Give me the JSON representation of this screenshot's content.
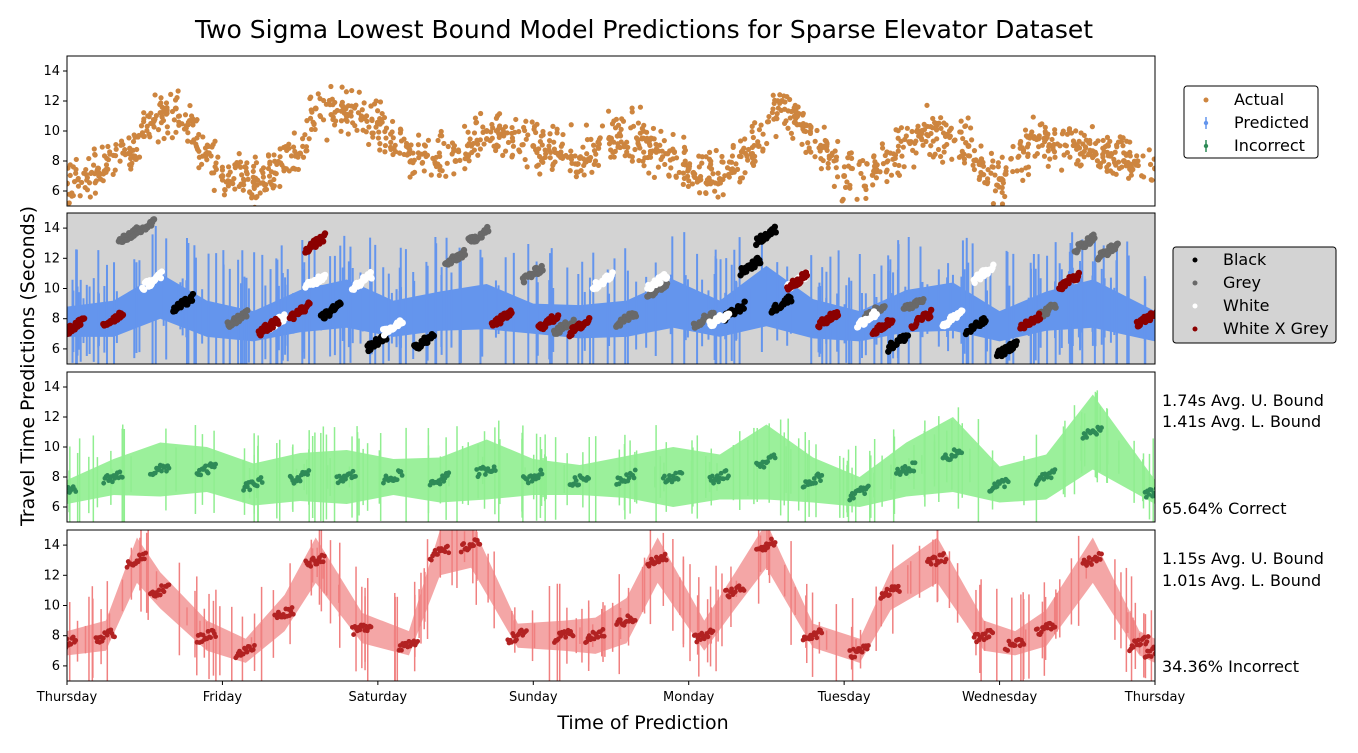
{
  "chart_data": {
    "type": "scatter",
    "title": "Two Sigma Lowest Bound Model Predictions for Sparse Elevator Dataset",
    "xlabel": "Time of Prediction",
    "ylabel": "Travel Time Predictions (Seconds)",
    "x_ticks": [
      "Thursday",
      "Friday",
      "Saturday",
      "Sunday",
      "Monday",
      "Tuesday",
      "Wednesday",
      "Thursday"
    ],
    "xlim": [
      0,
      7
    ],
    "ylim": [
      5,
      15
    ],
    "y_ticks": [
      6,
      8,
      10,
      12,
      14
    ],
    "colors": {
      "actual": "#cd853f",
      "predicted": "#6495ed",
      "incorrect_swatch": "#2e8b57",
      "black": "#000000",
      "grey": "#696969",
      "white": "#ffffff",
      "white_x_grey": "#8b0000",
      "correct_band": "#90ee90",
      "correct_point": "#2e8b57",
      "incorrect_band": "#f08080",
      "incorrect_point": "#b22222",
      "grey_background": "#d3d3d3"
    },
    "panels": [
      {
        "id": "actual",
        "legend": [
          "Actual",
          "Predicted",
          "Incorrect"
        ],
        "series": [
          {
            "name": "Actual",
            "x": [
              0.0,
              0.2,
              0.4,
              0.55,
              0.7,
              1.0,
              1.2,
              1.5,
              1.6,
              1.8,
              2.0,
              2.2,
              2.5,
              2.7,
              3.0,
              3.3,
              3.5,
              3.7,
              4.0,
              4.2,
              4.45,
              4.6,
              5.0,
              5.2,
              5.5,
              5.8,
              6.0,
              6.25,
              6.5,
              6.8,
              7.0
            ],
            "y": [
              6.5,
              7.5,
              8.5,
              10.5,
              11.5,
              7.0,
              6.6,
              8.5,
              11.5,
              11.0,
              10.5,
              8.5,
              8.0,
              10.0,
              9.0,
              8.2,
              9.5,
              9.5,
              7.5,
              6.8,
              9.0,
              12.0,
              7.0,
              7.3,
              10.0,
              9.0,
              6.8,
              9.5,
              9.0,
              8.0,
              7.5
            ]
          }
        ]
      },
      {
        "id": "classes",
        "legend": [
          "Black",
          "Grey",
          "White",
          "White X Grey"
        ],
        "series": [
          {
            "name": "Predicted",
            "x": [
              0.0,
              0.3,
              0.6,
              0.9,
              1.2,
              1.5,
              1.8,
              2.1,
              2.4,
              2.7,
              3.0,
              3.3,
              3.6,
              3.9,
              4.2,
              4.5,
              4.8,
              5.1,
              5.4,
              5.7,
              6.0,
              6.3,
              6.6,
              7.0
            ],
            "y": [
              7.8,
              8.0,
              9.5,
              8.0,
              7.5,
              8.5,
              9.0,
              8.0,
              8.5,
              8.8,
              8.0,
              7.8,
              8.0,
              9.0,
              8.0,
              9.5,
              8.0,
              7.5,
              8.5,
              8.8,
              7.5,
              8.5,
              9.0,
              7.5
            ],
            "err": [
              1.0,
              1.2,
              1.5,
              1.2,
              1.0,
              1.4,
              1.6,
              1.2,
              1.3,
              1.5,
              1.0,
              1.1,
              1.2,
              1.6,
              1.2,
              2.0,
              1.3,
              1.0,
              1.4,
              1.6,
              1.0,
              1.3,
              1.6,
              1.0
            ]
          },
          {
            "name": "Black",
            "x": [
              0.75,
              1.7,
              2.0,
              2.3,
              4.3,
              4.4,
              4.5,
              4.6,
              5.35,
              5.85,
              6.05
            ],
            "y": [
              9.0,
              8.5,
              6.5,
              6.5,
              8.5,
              11.5,
              13.5,
              9.0,
              6.5,
              7.5,
              6.0
            ]
          },
          {
            "name": "Grey",
            "x": [
              0.4,
              0.5,
              1.1,
              2.5,
              2.65,
              3.0,
              3.2,
              3.6,
              3.8,
              4.1,
              5.2,
              5.45,
              6.3,
              6.55,
              6.7
            ],
            "y": [
              13.5,
              14.0,
              8.0,
              12.0,
              13.5,
              11.0,
              7.5,
              8.0,
              10.0,
              8.0,
              8.5,
              9.0,
              8.5,
              13.0,
              12.5
            ]
          },
          {
            "name": "White",
            "x": [
              0.55,
              1.35,
              1.6,
              1.9,
              2.1,
              3.45,
              3.8,
              4.2,
              4.7,
              5.15,
              5.7,
              5.9
            ],
            "y": [
              10.5,
              7.8,
              10.5,
              10.5,
              7.5,
              10.5,
              10.5,
              8.0,
              10.5,
              8.0,
              8.0,
              11.0
            ]
          },
          {
            "name": "White X Grey",
            "x": [
              0.05,
              0.3,
              1.3,
              1.5,
              1.6,
              2.8,
              3.1,
              3.3,
              4.7,
              4.9,
              5.25,
              5.5,
              6.2,
              6.45,
              6.95
            ],
            "y": [
              7.5,
              8.0,
              7.5,
              8.5,
              13.0,
              8.0,
              7.8,
              7.5,
              10.5,
              8.0,
              7.5,
              8.0,
              7.8,
              10.5,
              8.0
            ]
          }
        ]
      },
      {
        "id": "correct",
        "annotations": [
          "1.74s Avg. U. Bound",
          "1.41s Avg. L. Bound",
          "65.64% Correct"
        ],
        "series": [
          {
            "name": "Correct",
            "x": [
              0.0,
              0.3,
              0.6,
              0.9,
              1.2,
              1.5,
              1.8,
              2.1,
              2.4,
              2.7,
              3.0,
              3.3,
              3.6,
              3.9,
              4.2,
              4.5,
              4.8,
              5.1,
              5.4,
              5.7,
              6.0,
              6.3,
              6.6,
              7.0
            ],
            "y": [
              7.0,
              8.0,
              8.5,
              8.5,
              7.5,
              8.0,
              8.0,
              8.0,
              7.8,
              8.5,
              8.0,
              7.8,
              8.0,
              8.0,
              8.0,
              9.0,
              7.8,
              7.0,
              8.5,
              9.5,
              7.5,
              8.0,
              11.0,
              7.0
            ],
            "err": [
              0.8,
              1.2,
              1.8,
              1.5,
              1.4,
              1.6,
              1.8,
              1.2,
              1.5,
              2.0,
              1.2,
              1.0,
              1.4,
              2.0,
              1.5,
              2.5,
              1.5,
              1.0,
              1.8,
              2.5,
              1.2,
              1.5,
              2.5,
              0.8
            ]
          }
        ]
      },
      {
        "id": "incorrect",
        "annotations": [
          "1.15s Avg. U. Bound",
          "1.01s Avg. L. Bound",
          "34.36% Incorrect"
        ],
        "series": [
          {
            "name": "Incorrect",
            "x": [
              0.0,
              0.25,
              0.45,
              0.6,
              0.9,
              1.15,
              1.4,
              1.6,
              1.9,
              2.2,
              2.4,
              2.6,
              2.9,
              3.2,
              3.4,
              3.6,
              3.8,
              4.1,
              4.3,
              4.5,
              4.8,
              5.1,
              5.3,
              5.6,
              5.9,
              6.1,
              6.3,
              6.6,
              6.9,
              7.0
            ],
            "y": [
              7.5,
              8.0,
              13.0,
              11.0,
              8.0,
              7.0,
              9.5,
              13.0,
              8.5,
              7.5,
              13.5,
              14.0,
              8.0,
              8.0,
              8.0,
              9.0,
              13.0,
              8.0,
              11.0,
              14.0,
              8.0,
              7.0,
              11.0,
              13.0,
              8.0,
              7.5,
              8.5,
              13.0,
              7.5,
              7.0
            ],
            "err": [
              0.8,
              1.0,
              1.5,
              1.2,
              1.0,
              0.8,
              1.2,
              1.5,
              1.0,
              0.8,
              1.5,
              1.5,
              0.8,
              1.0,
              1.2,
              1.5,
              1.5,
              1.0,
              1.2,
              1.5,
              0.8,
              0.8,
              1.3,
              1.5,
              1.0,
              0.8,
              1.2,
              1.5,
              0.8,
              0.8
            ]
          }
        ]
      }
    ]
  }
}
